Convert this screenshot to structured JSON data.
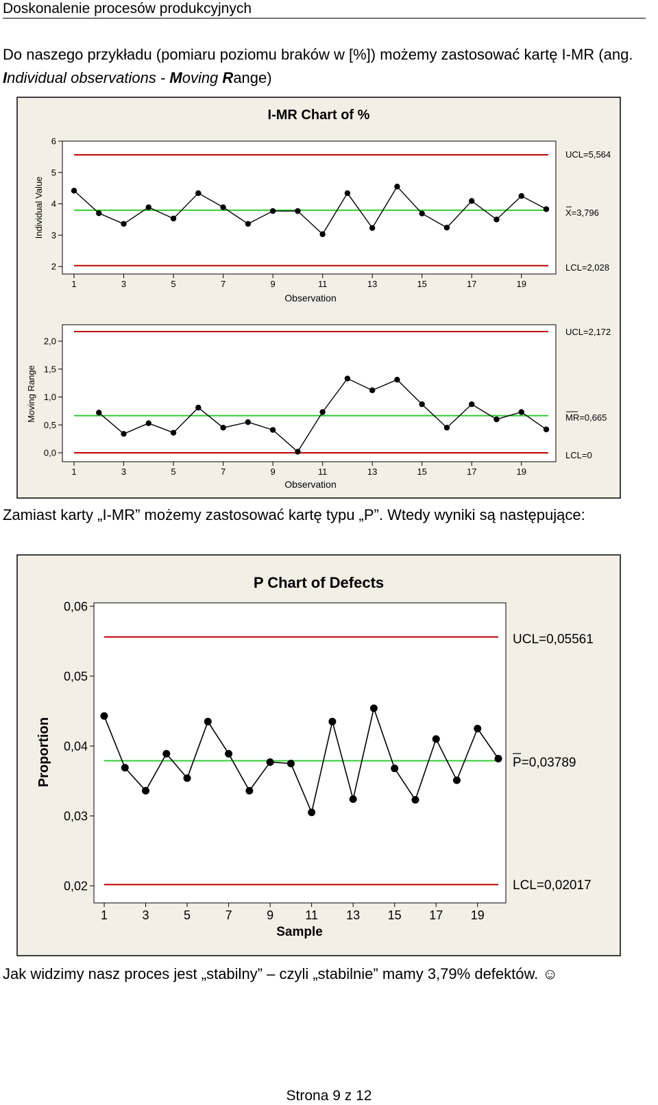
{
  "header": {
    "title": "Doskonalenie procesów produkcyjnych"
  },
  "intro": {
    "prefix": "Do naszego przykładu (pomiaru poziomu braków w [%]) możemy zastosować kartę I-MR (ang. ",
    "i1": "I",
    "rest1": "ndividual observations - ",
    "m1": "M",
    "rest2": "oving ",
    "r1": "R",
    "rest3": "ange)"
  },
  "middle": {
    "text": "Zamiast karty „I-MR” możemy zastosować kartę typu „P”. Wtedy wyniki są następujące:"
  },
  "conclusion": {
    "text": "Jak widzimy nasz proces jest „stabilny” – czyli „stabilnie” mamy 3,79% defektów. ☺"
  },
  "footer": {
    "page": "Strona 9 z 12"
  },
  "colors": {
    "ucl_lcl": "#c00000",
    "center": "#33cc33",
    "frame_bg": "#f2efe6"
  },
  "imr_chart": {
    "title": "I-MR Chart of %",
    "individual": {
      "ylabel": "Individual Value",
      "xlabel": "Observation",
      "yticks": [
        "2",
        "3",
        "4",
        "5",
        "6"
      ],
      "xticks": [
        "1",
        "3",
        "5",
        "7",
        "9",
        "11",
        "13",
        "15",
        "17",
        "19"
      ],
      "ucl_label": "UCL=5,564",
      "center_label": "X=3,796",
      "lcl_label": "LCL=2,028"
    },
    "moving_range": {
      "ylabel": "Moving Range",
      "xlabel": "Observation",
      "yticks": [
        "0,0",
        "0,5",
        "1,0",
        "1,5",
        "2,0"
      ],
      "xticks": [
        "1",
        "3",
        "5",
        "7",
        "9",
        "11",
        "13",
        "15",
        "17",
        "19"
      ],
      "ucl_label": "UCL=2,172",
      "center_label": "MR=0,665",
      "lcl_label": "LCL=0"
    }
  },
  "p_chart": {
    "title": "P Chart of Defects",
    "ylabel": "Proportion",
    "xlabel": "Sample",
    "yticks": [
      "0,02",
      "0,03",
      "0,04",
      "0,05",
      "0,06"
    ],
    "xticks": [
      "1",
      "3",
      "5",
      "7",
      "9",
      "11",
      "13",
      "15",
      "17",
      "19"
    ],
    "ucl_label": "UCL=0,05561",
    "center_label": "P=0,03789",
    "lcl_label": "LCL=0,02017"
  },
  "chart_data": [
    {
      "type": "line",
      "title": "I-MR Chart of %",
      "xlabel": "Observation",
      "ylabel": "Individual Value",
      "x": [
        1,
        2,
        3,
        4,
        5,
        6,
        7,
        8,
        9,
        10,
        11,
        12,
        13,
        14,
        15,
        16,
        17,
        18,
        19,
        20
      ],
      "series": [
        {
          "values": [
            4.42,
            3.7,
            3.36,
            3.89,
            3.53,
            4.34,
            3.89,
            3.36,
            3.77,
            3.77,
            3.03,
            4.34,
            3.23,
            4.55,
            3.69,
            3.24,
            4.09,
            3.5,
            4.25,
            3.83
          ]
        }
      ],
      "ucl": 5.564,
      "center": 3.796,
      "lcl": 2.028,
      "ylim": [
        2,
        6
      ],
      "xlim": [
        1,
        20
      ]
    },
    {
      "type": "line",
      "title": "",
      "xlabel": "Observation",
      "ylabel": "Moving Range",
      "x": [
        2,
        3,
        4,
        5,
        6,
        7,
        8,
        9,
        10,
        11,
        12,
        13,
        14,
        15,
        16,
        17,
        18,
        19,
        20
      ],
      "series": [
        {
          "values": [
            0.72,
            0.34,
            0.53,
            0.36,
            0.81,
            0.45,
            0.55,
            0.41,
            0.02,
            0.73,
            1.33,
            1.12,
            1.31,
            0.87,
            0.45,
            0.87,
            0.6,
            0.73,
            0.42
          ]
        }
      ],
      "ucl": 2.172,
      "center": 0.665,
      "lcl": 0,
      "ylim": [
        0,
        2
      ],
      "xlim": [
        1,
        20
      ]
    },
    {
      "type": "line",
      "title": "P Chart of Defects",
      "xlabel": "Sample",
      "ylabel": "Proportion",
      "x": [
        1,
        2,
        3,
        4,
        5,
        6,
        7,
        8,
        9,
        10,
        11,
        12,
        13,
        14,
        15,
        16,
        17,
        18,
        19,
        20
      ],
      "series": [
        {
          "values": [
            0.0443,
            0.0369,
            0.0336,
            0.0389,
            0.0354,
            0.0435,
            0.0389,
            0.0336,
            0.0377,
            0.0375,
            0.0305,
            0.0435,
            0.0324,
            0.0454,
            0.0368,
            0.0323,
            0.041,
            0.0351,
            0.0425,
            0.0382
          ]
        }
      ],
      "ucl": 0.05561,
      "center": 0.03789,
      "lcl": 0.02017,
      "ylim": [
        0.02,
        0.06
      ],
      "xlim": [
        1,
        20
      ]
    }
  ]
}
